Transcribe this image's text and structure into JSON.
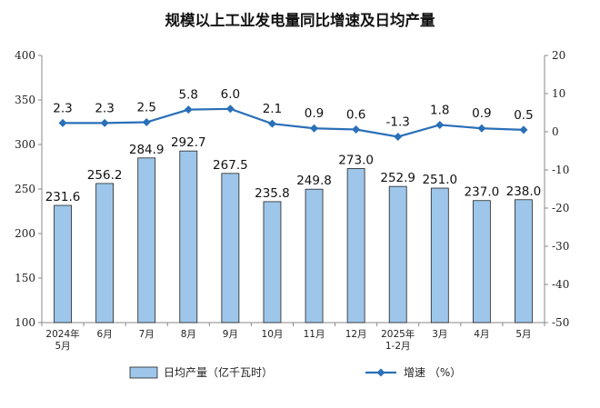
{
  "chart_data": {
    "type": "bar+line",
    "title": "规模以上工业发电量同比增速及日均产量",
    "categories": [
      [
        "2024年",
        "5月"
      ],
      [
        "6月"
      ],
      [
        "7月"
      ],
      [
        "8月"
      ],
      [
        "9月"
      ],
      [
        "10月"
      ],
      [
        "11月"
      ],
      [
        "12月"
      ],
      [
        "2025年",
        "1-2月"
      ],
      [
        "3月"
      ],
      [
        "4月"
      ],
      [
        "5月"
      ]
    ],
    "series": [
      {
        "name": "日均产量（亿千瓦时）",
        "type": "bar",
        "axis": "left",
        "color": "#9dc6ea",
        "values": [
          231.6,
          256.2,
          284.9,
          292.7,
          267.5,
          235.8,
          249.8,
          273.0,
          252.9,
          251.0,
          237.0,
          238.0
        ],
        "labels": [
          "231.6",
          "256.2",
          "284.9",
          "292.7",
          "267.5",
          "235.8",
          "249.8",
          "273.0",
          "252.9",
          "251.0",
          "237.0",
          "238.0"
        ]
      },
      {
        "name": "增速 （%）",
        "type": "line",
        "axis": "right",
        "color": "#2a6fb8",
        "values": [
          2.3,
          2.3,
          2.5,
          5.8,
          6.0,
          2.1,
          0.9,
          0.6,
          -1.3,
          1.8,
          0.9,
          0.5
        ],
        "labels": [
          "2.3",
          "2.3",
          "2.5",
          "5.8",
          "6.0",
          "2.1",
          "0.9",
          "0.6",
          "-1.3",
          "1.8",
          "0.9",
          "0.5"
        ]
      }
    ],
    "y_left": {
      "min": 100,
      "max": 400,
      "ticks": [
        100,
        150,
        200,
        250,
        300,
        350,
        400
      ]
    },
    "y_right": {
      "min": -50,
      "max": 20,
      "ticks": [
        -50,
        -40,
        -30,
        -20,
        -10,
        0,
        10,
        20
      ]
    },
    "grid": false,
    "legend_position": "bottom"
  }
}
